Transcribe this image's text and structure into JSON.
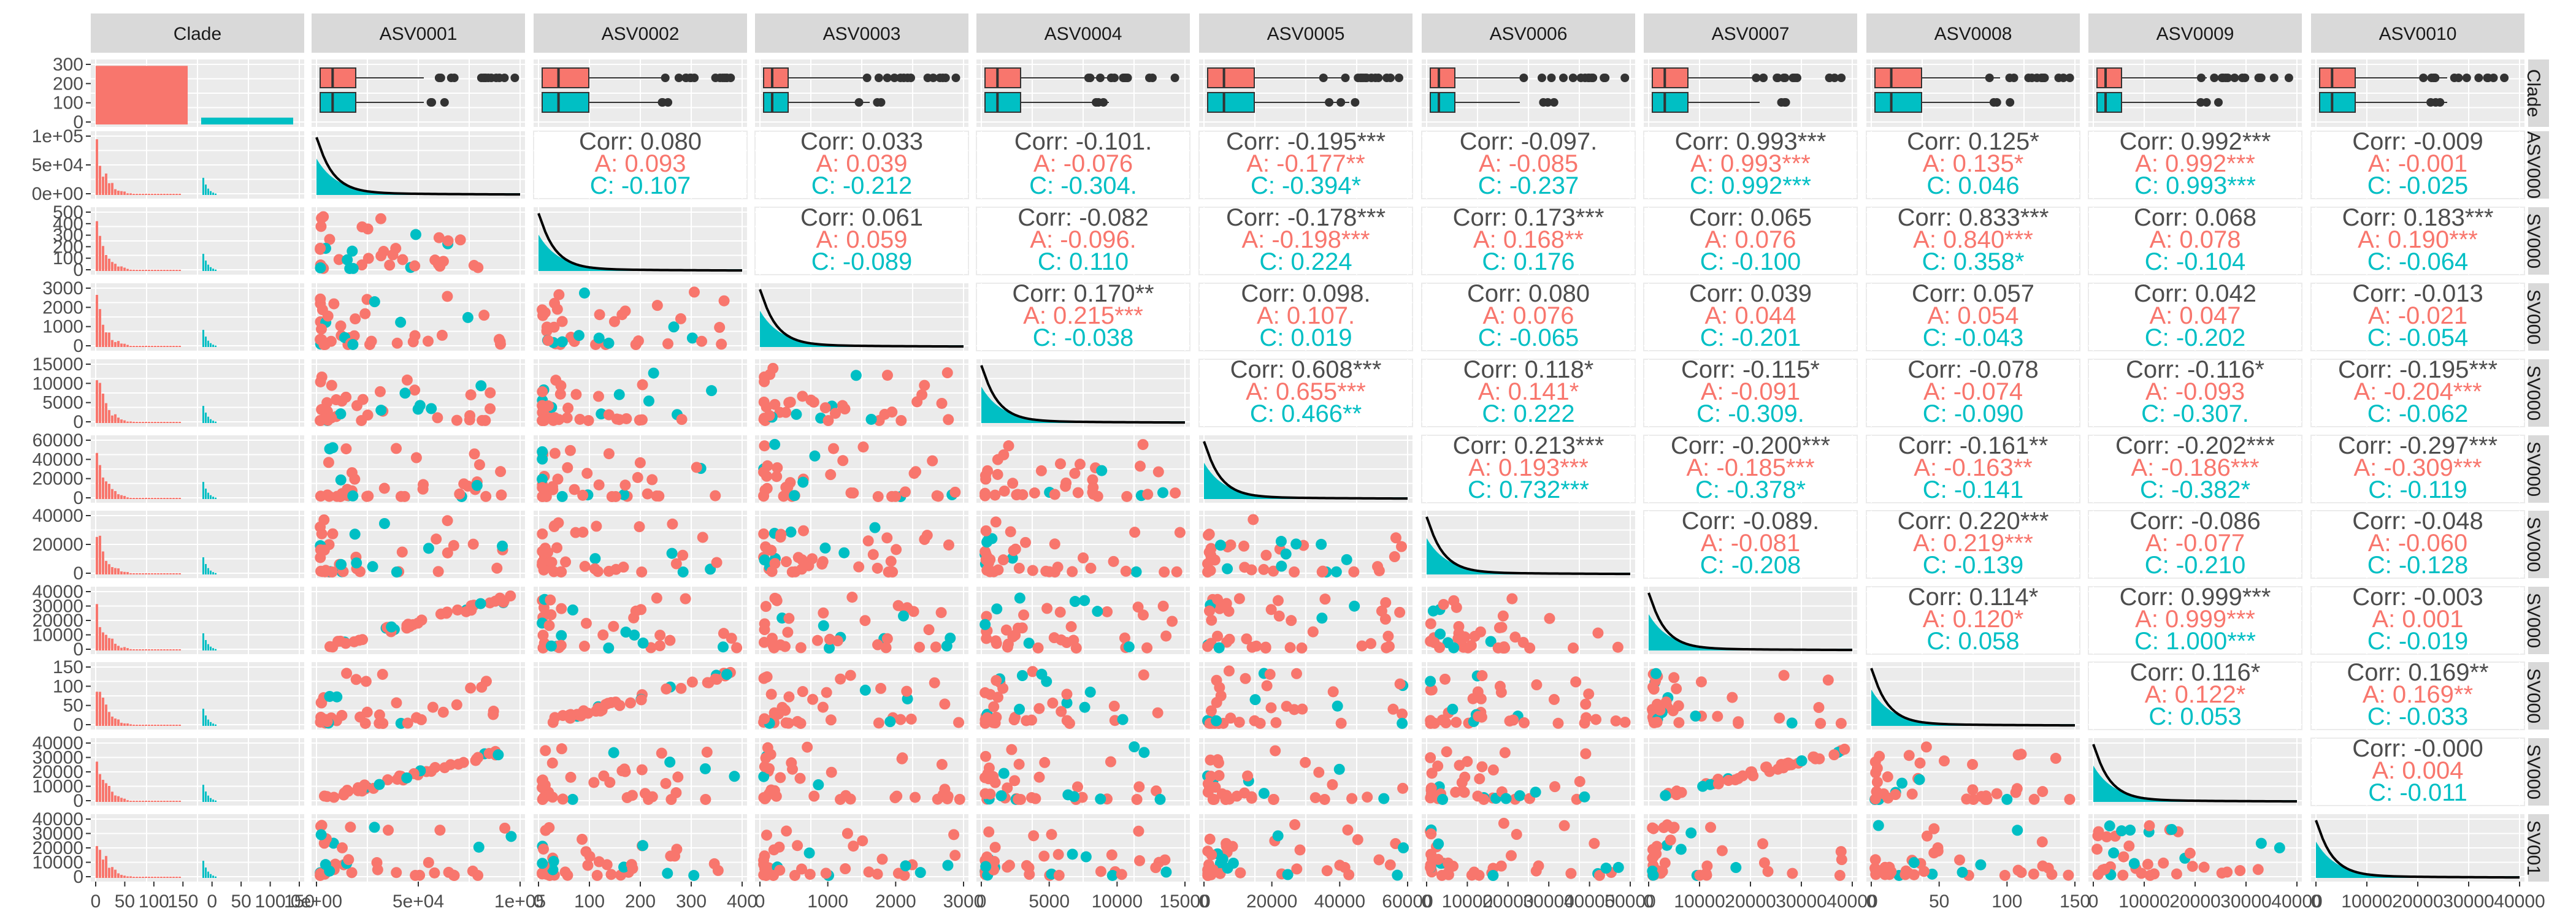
{
  "chart_data": {
    "type": "scatter-matrix",
    "colors": {
      "A": "#F8766D",
      "C": "#00BFC4",
      "panel_bg": "#EBEBEB",
      "strip_bg": "#D9D9D9",
      "corr_text": "#4D4D4D",
      "density_line": "#000000"
    },
    "variables": [
      "Clade",
      "ASV0001",
      "ASV0002",
      "ASV0003",
      "ASV0004",
      "ASV0005",
      "ASV0006",
      "ASV0007",
      "ASV0008",
      "ASV0009",
      "ASV0010"
    ],
    "right_strip_labels": [
      "Clade",
      "ASV000",
      "SV000",
      "SV000",
      "SV000",
      "SV000",
      "SV000",
      "SV000",
      "SV000",
      "SV000",
      "SV001"
    ],
    "x_tick_labels": [
      [
        "0",
        "50",
        "100",
        "150",
        "0",
        "50",
        "100",
        "150"
      ],
      [
        "0e+00",
        "5e+04",
        "1e+05"
      ],
      [
        "0",
        "100",
        "200",
        "300",
        "400"
      ],
      [
        "0",
        "1000",
        "2000",
        "3000"
      ],
      [
        "0",
        "5000",
        "10000",
        "15000"
      ],
      [
        "0",
        "20000",
        "40000",
        "60000"
      ],
      [
        "0",
        "10000",
        "20000",
        "30000",
        "40000",
        "50000"
      ],
      [
        "0",
        "10000",
        "20000",
        "30000",
        "40000"
      ],
      [
        "0",
        "50",
        "100",
        "150"
      ],
      [
        "0",
        "10000",
        "20000",
        "30000",
        "40000"
      ],
      [
        "0",
        "10000",
        "20000",
        "30000",
        "40000"
      ]
    ],
    "y_tick_labels": [
      [
        "0",
        "100",
        "200",
        "300"
      ],
      [
        "0e+00",
        "5e+04",
        "1e+05"
      ],
      [
        "0",
        "100",
        "200",
        "300",
        "400",
        "500"
      ],
      [
        "0",
        "1000",
        "2000",
        "3000"
      ],
      [
        "0",
        "5000",
        "10000",
        "15000"
      ],
      [
        "0",
        "20000",
        "40000",
        "60000"
      ],
      [
        "0",
        "20000",
        "40000"
      ],
      [
        "0",
        "10000",
        "20000",
        "30000",
        "40000"
      ],
      [
        "0",
        "50",
        "100",
        "150"
      ],
      [
        "0",
        "10000",
        "20000",
        "30000",
        "40000"
      ],
      [
        "0",
        "10000",
        "20000",
        "30000",
        "40000"
      ]
    ],
    "clade_counts": {
      "A": 300,
      "C": 35
    },
    "correlations": [
      {
        "row": 1,
        "col": 2,
        "corr": "Corr: 0.080",
        "a": "A: 0.093",
        "c": "C: -0.107"
      },
      {
        "row": 1,
        "col": 3,
        "corr": "Corr: 0.033",
        "a": "A: 0.039",
        "c": "C: -0.212"
      },
      {
        "row": 1,
        "col": 4,
        "corr": "Corr: -0.101.",
        "a": "A: -0.076",
        "c": "C: -0.304."
      },
      {
        "row": 1,
        "col": 5,
        "corr": "Corr: -0.195***",
        "a": "A: -0.177**",
        "c": "C: -0.394*"
      },
      {
        "row": 1,
        "col": 6,
        "corr": "Corr: -0.097.",
        "a": "A: -0.085",
        "c": "C: -0.237"
      },
      {
        "row": 1,
        "col": 7,
        "corr": "Corr: 0.993***",
        "a": "A: 0.993***",
        "c": "C: 0.992***"
      },
      {
        "row": 1,
        "col": 8,
        "corr": "Corr: 0.125*",
        "a": "A: 0.135*",
        "c": "C: 0.046"
      },
      {
        "row": 1,
        "col": 9,
        "corr": "Corr: 0.992***",
        "a": "A: 0.992***",
        "c": "C: 0.993***"
      },
      {
        "row": 1,
        "col": 10,
        "corr": "Corr: -0.009",
        "a": "A: -0.001",
        "c": "C: -0.025"
      },
      {
        "row": 2,
        "col": 3,
        "corr": "Corr: 0.061",
        "a": "A: 0.059",
        "c": "C: -0.089"
      },
      {
        "row": 2,
        "col": 4,
        "corr": "Corr: -0.082",
        "a": "A: -0.096.",
        "c": "C: 0.110"
      },
      {
        "row": 2,
        "col": 5,
        "corr": "Corr: -0.178***",
        "a": "A: -0.198***",
        "c": "C: 0.224"
      },
      {
        "row": 2,
        "col": 6,
        "corr": "Corr: 0.173***",
        "a": "A: 0.168**",
        "c": "C: 0.176"
      },
      {
        "row": 2,
        "col": 7,
        "corr": "Corr: 0.065",
        "a": "A: 0.076",
        "c": "C: -0.100"
      },
      {
        "row": 2,
        "col": 8,
        "corr": "Corr: 0.833***",
        "a": "A: 0.840***",
        "c": "C: 0.358*"
      },
      {
        "row": 2,
        "col": 9,
        "corr": "Corr: 0.068",
        "a": "A: 0.078",
        "c": "C: -0.104"
      },
      {
        "row": 2,
        "col": 10,
        "corr": "Corr: 0.183***",
        "a": "A: 0.190***",
        "c": "C: -0.064"
      },
      {
        "row": 3,
        "col": 4,
        "corr": "Corr: 0.170**",
        "a": "A: 0.215***",
        "c": "C: -0.038"
      },
      {
        "row": 3,
        "col": 5,
        "corr": "Corr: 0.098.",
        "a": "A: 0.107.",
        "c": "C: 0.019"
      },
      {
        "row": 3,
        "col": 6,
        "corr": "Corr: 0.080",
        "a": "A: 0.076",
        "c": "C: -0.065"
      },
      {
        "row": 3,
        "col": 7,
        "corr": "Corr: 0.039",
        "a": "A: 0.044",
        "c": "C: -0.201"
      },
      {
        "row": 3,
        "col": 8,
        "corr": "Corr: 0.057",
        "a": "A: 0.054",
        "c": "C: -0.043"
      },
      {
        "row": 3,
        "col": 9,
        "corr": "Corr: 0.042",
        "a": "A: 0.047",
        "c": "C: -0.202"
      },
      {
        "row": 3,
        "col": 10,
        "corr": "Corr: -0.013",
        "a": "A: -0.021",
        "c": "C: -0.054"
      },
      {
        "row": 4,
        "col": 5,
        "corr": "Corr: 0.608***",
        "a": "A: 0.655***",
        "c": "C: 0.466**"
      },
      {
        "row": 4,
        "col": 6,
        "corr": "Corr: 0.118*",
        "a": "A: 0.141*",
        "c": "C: 0.222"
      },
      {
        "row": 4,
        "col": 7,
        "corr": "Corr: -0.115*",
        "a": "A: -0.091",
        "c": "C: -0.309."
      },
      {
        "row": 4,
        "col": 8,
        "corr": "Corr: -0.078",
        "a": "A: -0.074",
        "c": "C: -0.090"
      },
      {
        "row": 4,
        "col": 9,
        "corr": "Corr: -0.116*",
        "a": "A: -0.093",
        "c": "C: -0.307."
      },
      {
        "row": 4,
        "col": 10,
        "corr": "Corr: -0.195***",
        "a": "A: -0.204***",
        "c": "C: -0.062"
      },
      {
        "row": 5,
        "col": 6,
        "corr": "Corr: 0.213***",
        "a": "A: 0.193***",
        "c": "C: 0.732***"
      },
      {
        "row": 5,
        "col": 7,
        "corr": "Corr: -0.200***",
        "a": "A: -0.185***",
        "c": "C: -0.378*"
      },
      {
        "row": 5,
        "col": 8,
        "corr": "Corr: -0.161**",
        "a": "A: -0.163**",
        "c": "C: -0.141"
      },
      {
        "row": 5,
        "col": 9,
        "corr": "Corr: -0.202***",
        "a": "A: -0.186***",
        "c": "C: -0.382*"
      },
      {
        "row": 5,
        "col": 10,
        "corr": "Corr: -0.297***",
        "a": "A: -0.309***",
        "c": "C: -0.119"
      },
      {
        "row": 6,
        "col": 7,
        "corr": "Corr: -0.089.",
        "a": "A: -0.081",
        "c": "C: -0.208"
      },
      {
        "row": 6,
        "col": 8,
        "corr": "Corr: 0.220***",
        "a": "A: 0.219***",
        "c": "C: -0.139"
      },
      {
        "row": 6,
        "col": 9,
        "corr": "Corr: -0.086",
        "a": "A: -0.077",
        "c": "C: -0.210"
      },
      {
        "row": 6,
        "col": 10,
        "corr": "Corr: -0.048",
        "a": "A: -0.060",
        "c": "C: -0.128"
      },
      {
        "row": 7,
        "col": 8,
        "corr": "Corr: 0.114*",
        "a": "A: 0.120*",
        "c": "C: 0.058"
      },
      {
        "row": 7,
        "col": 9,
        "corr": "Corr: 0.999***",
        "a": "A: 0.999***",
        "c": "C: 1.000***"
      },
      {
        "row": 7,
        "col": 10,
        "corr": "Corr: -0.003",
        "a": "A: 0.001",
        "c": "C: -0.019"
      },
      {
        "row": 8,
        "col": 9,
        "corr": "Corr: 0.116*",
        "a": "A: 0.122*",
        "c": "C: 0.053"
      },
      {
        "row": 8,
        "col": 10,
        "corr": "Corr: 0.169**",
        "a": "A: 0.169**",
        "c": "C: -0.033"
      },
      {
        "row": 9,
        "col": 10,
        "corr": "Corr: -0.000",
        "a": "A: 0.004",
        "c": "C: -0.011"
      }
    ]
  }
}
